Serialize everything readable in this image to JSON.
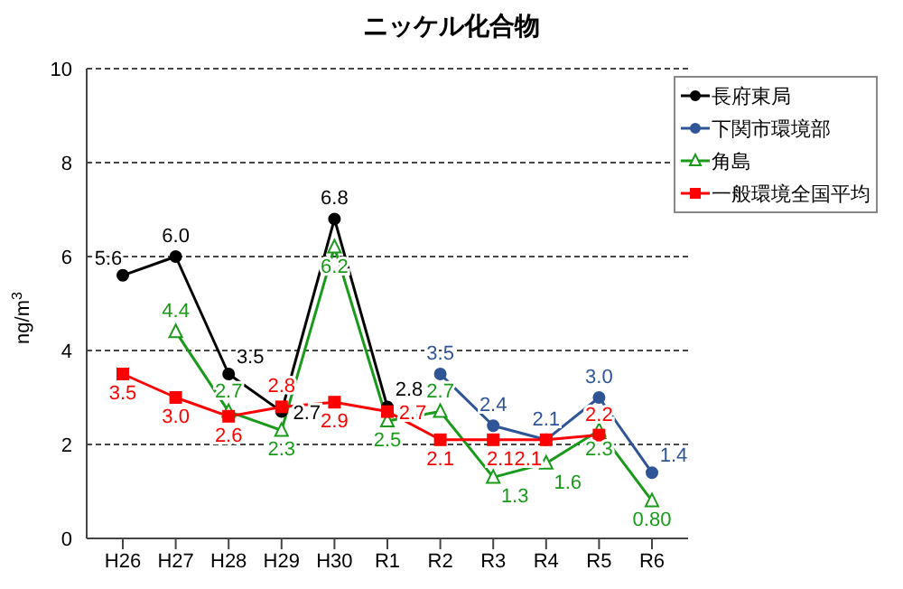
{
  "chart_data": {
    "type": "line",
    "title": "ニッケル化合物",
    "ylabel": "ng/m$^{3}$",
    "categories": [
      "H26",
      "H27",
      "H28",
      "H29",
      "H30",
      "R1",
      "R2",
      "R3",
      "R4",
      "R5",
      "R6"
    ],
    "series": [
      {
        "name": "長府東局",
        "color": "#000000",
        "marker": "circle",
        "values": [
          5.6,
          6.0,
          3.5,
          2.7,
          6.8,
          2.8,
          null,
          null,
          null,
          null,
          null
        ],
        "value_labels": [
          "5.6",
          "6.0",
          "3.5",
          "2.7",
          "6.8",
          "2.8",
          null,
          null,
          null,
          null,
          null
        ]
      },
      {
        "name": "下関市環境部",
        "color": "#2f5597",
        "marker": "circle",
        "values": [
          null,
          null,
          null,
          null,
          null,
          null,
          3.5,
          2.4,
          2.1,
          3.0,
          1.4
        ],
        "value_labels": [
          null,
          null,
          null,
          null,
          null,
          null,
          "3.5",
          "2.4",
          "2.1",
          "3.0",
          "1.4"
        ]
      },
      {
        "name": "角島",
        "color": "#1a9a1a",
        "marker": "triangle",
        "values": [
          null,
          4.4,
          2.7,
          2.3,
          6.2,
          2.5,
          2.7,
          1.3,
          1.6,
          2.3,
          0.8
        ],
        "value_labels": [
          null,
          "4.4",
          "2.7",
          "2.3",
          "6.2",
          "2.5",
          "2.7",
          "1.3",
          "1.6",
          "2.3",
          "0.80"
        ]
      },
      {
        "name": "一般環境全国平均",
        "color": "#ff0000",
        "marker": "square",
        "values": [
          3.5,
          3.0,
          2.6,
          2.8,
          2.9,
          2.7,
          2.1,
          2.1,
          2.1,
          2.2,
          null
        ],
        "value_labels": [
          "3.5",
          "3.0",
          "2.6",
          "2.8",
          "2.9",
          "2.7",
          "2.1",
          "2.1",
          "2.1",
          "2.2",
          null
        ]
      }
    ],
    "ylim": [
      0,
      10
    ],
    "yticks": [
      0,
      2,
      4,
      6,
      8,
      10
    ],
    "grid": "y",
    "legend": "top right"
  }
}
